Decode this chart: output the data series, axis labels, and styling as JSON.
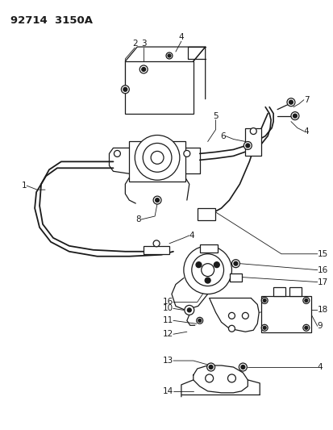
{
  "title": "92714  3150A",
  "bg_color": "#ffffff",
  "line_color": "#1a1a1a",
  "title_fontsize": 9.5,
  "label_fontsize": 7.5,
  "fig_width": 4.14,
  "fig_height": 5.33,
  "dpi": 100
}
